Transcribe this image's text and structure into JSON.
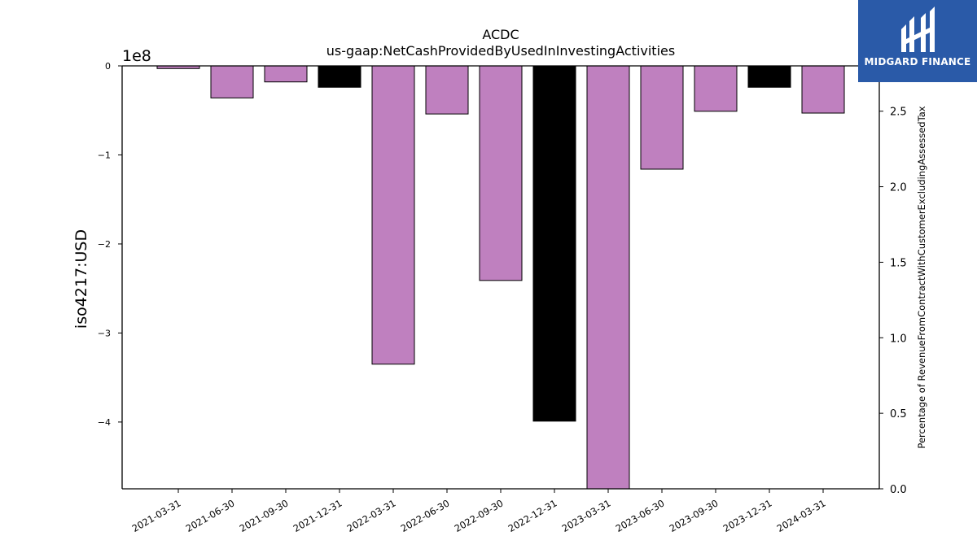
{
  "chart_data": {
    "type": "bar",
    "title": "ACDC",
    "subtitle": "us-gaap:NetCashProvidedByUsedInInvestingActivities",
    "ylabel": "iso4217:USD",
    "y_offset_label": "1e8",
    "y2label": "Percentage of RevenueFromContractWithCustomerExcludingAssessedTax",
    "ylim": [
      -4.75,
      0
    ],
    "y2lim": [
      0,
      2.8
    ],
    "yticks": [
      "0",
      "−1",
      "−2",
      "−3",
      "−4"
    ],
    "yticks_values": [
      0,
      -1,
      -2,
      -3,
      -4
    ],
    "y2ticks": [
      "0.0",
      "0.5",
      "1.0",
      "1.5",
      "2.0",
      "2.5"
    ],
    "y2ticks_values": [
      0,
      0.5,
      1.0,
      1.5,
      2.0,
      2.5
    ],
    "grid": false,
    "categories": [
      "2021-03-31",
      "2021-06-30",
      "2021-09-30",
      "2021-12-31",
      "2022-03-31",
      "2022-06-30",
      "2022-09-30",
      "2022-12-31",
      "2023-03-31",
      "2023-06-30",
      "2023-09-30",
      "2023-12-31",
      "2024-03-31"
    ],
    "values": [
      -0.03,
      -0.36,
      -0.18,
      -0.24,
      -3.35,
      -0.54,
      -2.41,
      -3.99,
      -4.75,
      -1.16,
      -0.51,
      -0.24,
      -0.53
    ],
    "bar_colors": [
      "#bf80bf",
      "#bf80bf",
      "#bf80bf",
      "#000000",
      "#bf80bf",
      "#bf80bf",
      "#bf80bf",
      "#000000",
      "#bf80bf",
      "#bf80bf",
      "#bf80bf",
      "#000000",
      "#bf80bf"
    ]
  },
  "brand": {
    "name": "MIDGARD FINANCE",
    "color": "#2a5aa8",
    "icon": "midgard-logo-icon"
  }
}
